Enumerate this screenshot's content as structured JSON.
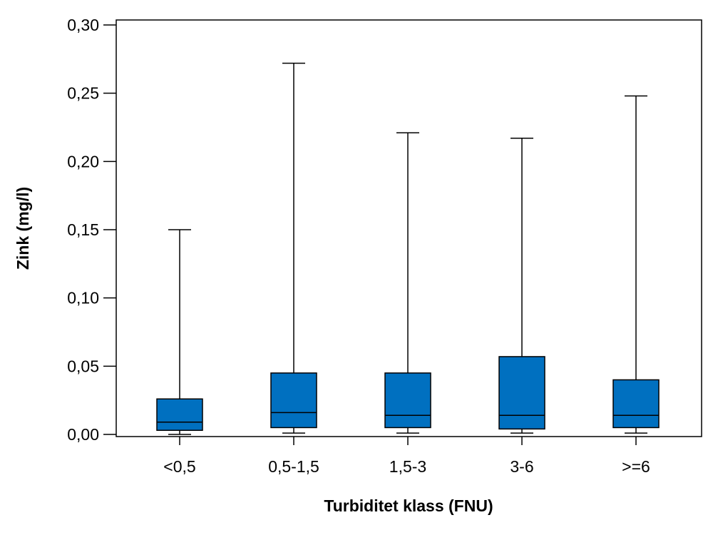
{
  "chart_data": {
    "type": "boxplot",
    "title": "",
    "xlabel": "Turbiditet klass (FNU)",
    "ylabel": "Zink (mg/l)",
    "ylim": [
      0,
      0.3
    ],
    "y_ticks": [
      {
        "value": 0.0,
        "label": "0,00"
      },
      {
        "value": 0.05,
        "label": "0,05"
      },
      {
        "value": 0.1,
        "label": "0,10"
      },
      {
        "value": 0.15,
        "label": "0,15"
      },
      {
        "value": 0.2,
        "label": "0,20"
      },
      {
        "value": 0.25,
        "label": "0,25"
      },
      {
        "value": 0.3,
        "label": "0,30"
      }
    ],
    "categories": [
      "<0,5",
      "0,5-1,5",
      "1,5-3",
      "3-6",
      ">=6"
    ],
    "boxes": [
      {
        "min": 0.0,
        "q1": 0.003,
        "median": 0.009,
        "q3": 0.026,
        "max": 0.15
      },
      {
        "min": 0.001,
        "q1": 0.005,
        "median": 0.016,
        "q3": 0.045,
        "max": 0.272
      },
      {
        "min": 0.001,
        "q1": 0.005,
        "median": 0.014,
        "q3": 0.045,
        "max": 0.221
      },
      {
        "min": 0.001,
        "q1": 0.004,
        "median": 0.014,
        "q3": 0.057,
        "max": 0.217
      },
      {
        "min": 0.001,
        "q1": 0.005,
        "median": 0.014,
        "q3": 0.04,
        "max": 0.248
      }
    ],
    "box_color": "#0070C0",
    "line_color": "#000000",
    "grid": false,
    "legend": "none"
  }
}
